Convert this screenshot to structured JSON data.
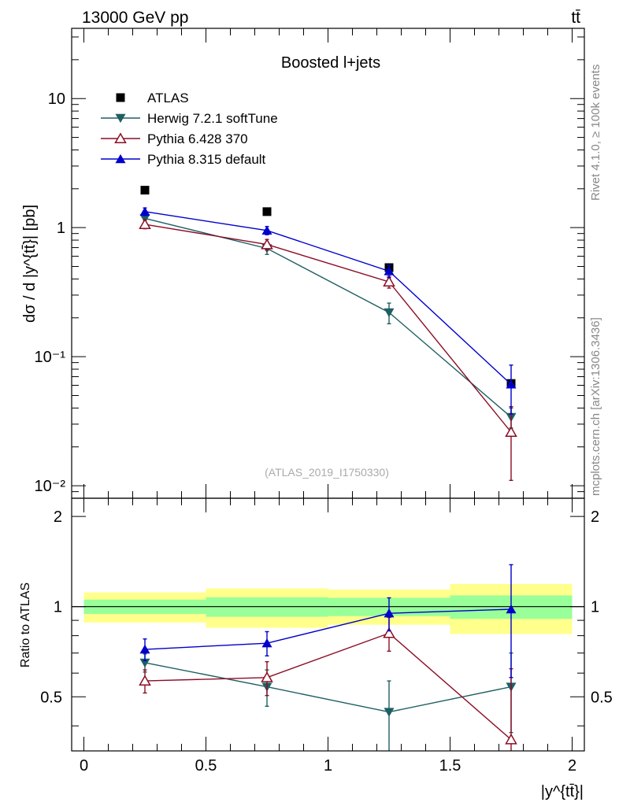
{
  "header": {
    "energy_label": "13000 GeV pp",
    "process_label": "tt̄"
  },
  "side_labels": {
    "rivet": "Rivet 4.1.0, ≥ 100k events",
    "mcplots": "mcplots.cern.ch [arXiv:1306.3436]"
  },
  "chart_data": [
    {
      "type": "scatter",
      "title": "Boosted l+jets",
      "analysis_tag": "(ATLAS_2019_I1750330)",
      "xlabel": "|y^{tt̄}|",
      "ylabel": "dσ / d |y^{tt̄}| [pb]",
      "yscale": "log",
      "xlim": [
        -0.05,
        2.05
      ],
      "ylim": [
        0.008,
        35
      ],
      "ytick_labels": [
        "10⁻²",
        "10⁻¹",
        "1",
        "10"
      ],
      "legend": [
        "ATLAS",
        "Herwig 7.2.1 softTune",
        "Pythia 6.428 370",
        "Pythia 8.315 default"
      ],
      "series": [
        {
          "name": "ATLAS",
          "color": "#000000",
          "marker": "square",
          "x": [
            0.25,
            0.75,
            1.25,
            1.75
          ],
          "y": [
            1.95,
            1.33,
            0.49,
            0.062
          ]
        },
        {
          "name": "Herwig 7.2.1 softTune",
          "color": "#1f5f63",
          "marker": "triangle-down",
          "x": [
            0.25,
            0.75,
            1.25,
            1.75
          ],
          "y": [
            1.18,
            0.69,
            0.22,
            0.034
          ],
          "yerr": [
            0.09,
            0.07,
            0.04,
            0.006
          ]
        },
        {
          "name": "Pythia 6.428 370",
          "color": "#8b0d25",
          "marker": "triangle-up-open",
          "x": [
            0.25,
            0.75,
            1.25,
            1.75
          ],
          "y": [
            1.06,
            0.74,
            0.38,
            0.026
          ],
          "yerr": [
            0.08,
            0.07,
            0.04,
            0.015
          ]
        },
        {
          "name": "Pythia 8.315 default",
          "color": "#0000cc",
          "marker": "triangle-up",
          "x": [
            0.25,
            0.75,
            1.25,
            1.75
          ],
          "y": [
            1.33,
            0.95,
            0.46,
            0.061
          ],
          "yerr": [
            0.09,
            0.07,
            0.05,
            0.025
          ]
        }
      ]
    },
    {
      "type": "line",
      "ylabel": "Ratio to ATLAS",
      "xlabel": "|y^{tt̄}|",
      "xlim": [
        -0.05,
        2.05
      ],
      "ylim": [
        0.33,
        2.3
      ],
      "xtick_labels": [
        "0",
        "0.5",
        "1",
        "1.5",
        "2"
      ],
      "ytick_labels": [
        "0.5",
        "1",
        "2"
      ],
      "reference_line": 1,
      "bands": [
        {
          "x_range": [
            0.0,
            0.5
          ],
          "inner": [
            0.945,
            1.055
          ],
          "outer": [
            0.885,
            1.115
          ]
        },
        {
          "x_range": [
            0.5,
            1.0
          ],
          "inner": [
            0.925,
            1.075
          ],
          "outer": [
            0.85,
            1.15
          ]
        },
        {
          "x_range": [
            1.0,
            1.5
          ],
          "inner": [
            0.93,
            1.07
          ],
          "outer": [
            0.87,
            1.14
          ]
        },
        {
          "x_range": [
            1.5,
            2.0
          ],
          "inner": [
            0.91,
            1.09
          ],
          "outer": [
            0.81,
            1.19
          ]
        }
      ],
      "series": [
        {
          "name": "Herwig 7.2.1 softTune",
          "color": "#1f5f63",
          "marker": "triangle-down",
          "x": [
            0.25,
            0.75,
            1.25,
            1.75
          ],
          "y": [
            0.65,
            0.54,
            0.445,
            0.54
          ],
          "yerr": [
            0.045,
            0.075,
            0.12,
            0.16
          ]
        },
        {
          "name": "Pythia 6.428 370",
          "color": "#8b0d25",
          "marker": "triangle-up-open",
          "x": [
            0.25,
            0.75,
            1.25,
            1.75
          ],
          "y": [
            0.565,
            0.58,
            0.815,
            0.36
          ],
          "yerr": [
            0.05,
            0.075,
            0.105,
            0.26
          ]
        },
        {
          "name": "Pythia 8.315 default",
          "color": "#0000cc",
          "marker": "triangle-up",
          "x": [
            0.25,
            0.75,
            1.25,
            1.75
          ],
          "y": [
            0.72,
            0.755,
            0.95,
            0.98
          ],
          "yerr": [
            0.06,
            0.07,
            0.12,
            0.4
          ]
        }
      ]
    }
  ]
}
